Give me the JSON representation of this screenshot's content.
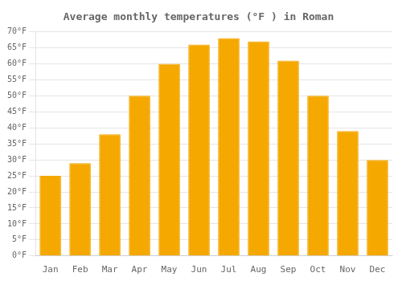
{
  "chart_data": {
    "type": "bar",
    "title": "Average monthly temperatures (°F ) in Roman",
    "categories": [
      "Jan",
      "Feb",
      "Mar",
      "Apr",
      "May",
      "Jun",
      "Jul",
      "Aug",
      "Sep",
      "Oct",
      "Nov",
      "Dec"
    ],
    "values": [
      25,
      29,
      38,
      50,
      60,
      66,
      68,
      67,
      61,
      50,
      39,
      30
    ],
    "color": "#F5A800",
    "ylim": [
      0,
      70
    ],
    "yticks": [
      {
        "value": 0,
        "label": "0°F"
      },
      {
        "value": 5,
        "label": "5°F"
      },
      {
        "value": 10,
        "label": "10°F"
      },
      {
        "value": 15,
        "label": "15°F"
      },
      {
        "value": 20,
        "label": "20°F"
      },
      {
        "value": 25,
        "label": "25°F"
      },
      {
        "value": 30,
        "label": "30°F"
      },
      {
        "value": 35,
        "label": "35°F"
      },
      {
        "value": 40,
        "label": "40°F"
      },
      {
        "value": 45,
        "label": "45°F"
      },
      {
        "value": 50,
        "label": "50°F"
      },
      {
        "value": 55,
        "label": "55°F"
      },
      {
        "value": 60,
        "label": "60°F"
      },
      {
        "value": 65,
        "label": "65°F"
      },
      {
        "value": 70,
        "label": "70°F"
      }
    ],
    "grid": true
  }
}
